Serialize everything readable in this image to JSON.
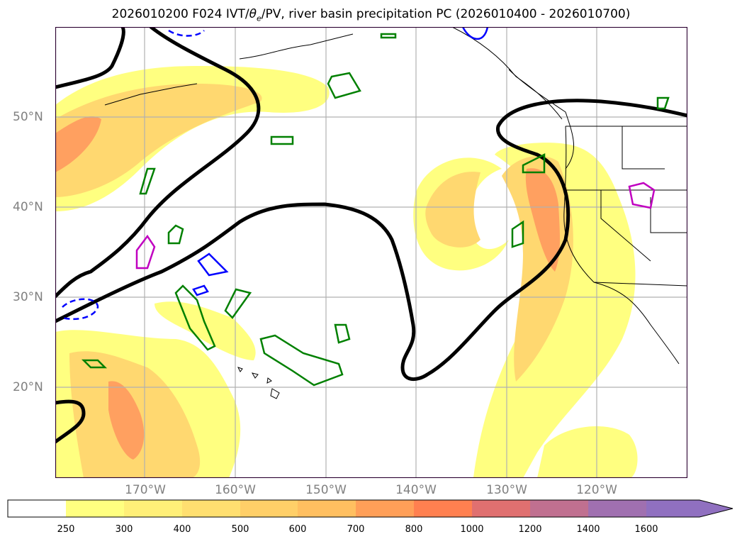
{
  "title_parts": {
    "prefix": "2026010200 F024 IVT/",
    "theta": "θ",
    "theta_sub": "e",
    "suffix": "/PV, river basin precipitation PC (2026010400 - 2026010700)"
  },
  "lat_labels": [
    "50°N",
    "40°N",
    "30°N",
    "20°N"
  ],
  "lon_labels": [
    "170°W",
    "160°W",
    "150°W",
    "140°W",
    "130°W",
    "120°W"
  ],
  "colorbar": {
    "ticks": [
      "250",
      "300",
      "400",
      "500",
      "600",
      "700",
      "800",
      "1000",
      "1200",
      "1400",
      "1600"
    ],
    "colors": [
      "#ffff80",
      "#ffef78",
      "#ffdf70",
      "#ffcf68",
      "#ffbf60",
      "#ff9f58",
      "#ff8050",
      "#e07070",
      "#c07090",
      "#a070b0",
      "#9070c0"
    ]
  },
  "map_colors": {
    "ivt_light": "#ffff80",
    "ivt_mid": "#ffd870",
    "ivt_high": "#ffa060",
    "ivt_peak": "#f08070",
    "pv_line": "#000000",
    "theta_green": "#008000",
    "blue_contour": "#0000ff",
    "magenta_contour": "#c000c0",
    "coast": "#000000",
    "grid": "#b0b0b0"
  }
}
